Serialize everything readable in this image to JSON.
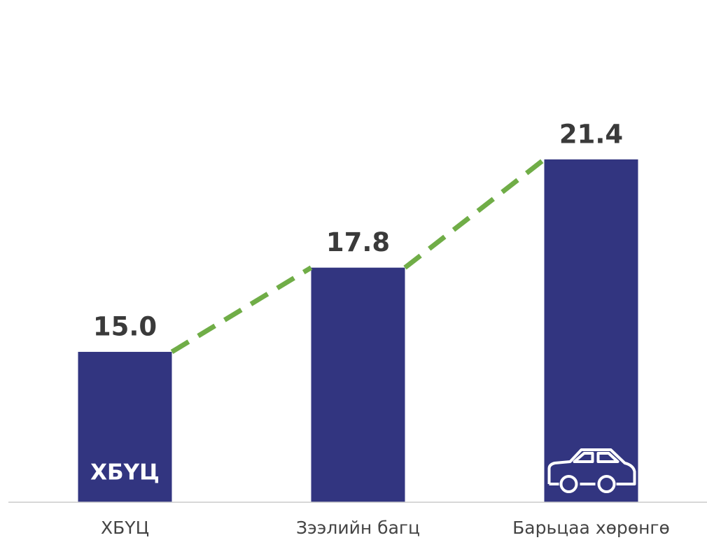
{
  "chart_data": {
    "type": "bar",
    "categories": [
      "ХБҮЦ",
      "Зээлийн багц",
      "Барьцаа хөрөнгө"
    ],
    "values": [
      15.0,
      17.8,
      21.4
    ],
    "value_labels": [
      "15.0",
      "17.8",
      "21.4"
    ],
    "color": "#323580",
    "trend_color": "#70ad47",
    "ylim": [
      10,
      26.7
    ]
  }
}
